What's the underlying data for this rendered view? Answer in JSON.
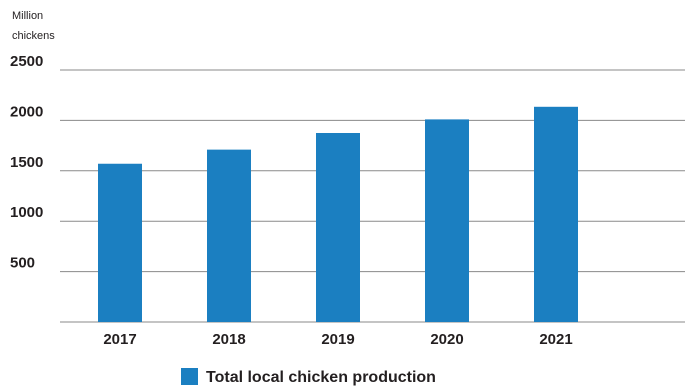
{
  "chart_data": {
    "type": "bar",
    "ylabel": "Million chickens",
    "categories": [
      "2017",
      "2018",
      "2019",
      "2020",
      "2021"
    ],
    "series": [
      {
        "name": "Total local chicken production",
        "values": [
          1570,
          1710,
          1875,
          2010,
          2135
        ]
      }
    ],
    "ylim": [
      0,
      2500
    ],
    "yticks": [
      2500,
      2000,
      1500,
      1000,
      500
    ],
    "grid": true,
    "legend_position": "bottom-center",
    "colors": {
      "bar": "#1b7fc1",
      "grid": "#8a8a8a",
      "text": "#231f20"
    }
  }
}
